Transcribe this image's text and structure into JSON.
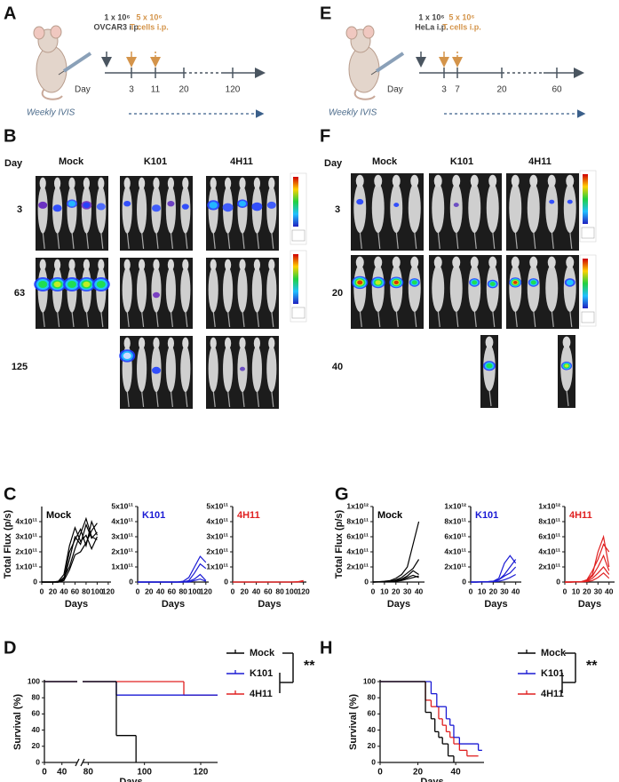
{
  "timelines": [
    {
      "panel": "A",
      "injection": [
        "1 x 10⁶",
        "OVCAR3 i.p."
      ],
      "tcells": [
        "5 x 10⁶",
        "T cells i.p."
      ],
      "day_label": "Day",
      "days": [
        3,
        11,
        20,
        120
      ],
      "imaging": "Weekly IVIS"
    },
    {
      "panel": "E",
      "injection": [
        "1 x 10⁶",
        "HeLa i.p."
      ],
      "tcells": [
        "5 x 10⁶",
        "T cells i.p."
      ],
      "day_label": "Day",
      "days": [
        3,
        7,
        20,
        60
      ],
      "imaging": "Weekly IVIS"
    }
  ],
  "imaging": [
    {
      "panel": "B",
      "day_label": "Day",
      "groups": [
        "Mock",
        "K101",
        "4H11"
      ],
      "days": [
        3,
        63,
        125
      ]
    },
    {
      "panel": "F",
      "day_label": "Day",
      "groups": [
        "Mock",
        "K101",
        "4H11"
      ],
      "days": [
        3,
        20,
        40
      ]
    }
  ],
  "chart_data": [
    {
      "type": "line",
      "panel": "C",
      "title": "Mock",
      "title_color": "#000000",
      "ylabel": "Total Flux (p/s)",
      "xlabel": "Days",
      "x": [
        0,
        10,
        20,
        30,
        40,
        50,
        60,
        70,
        80,
        90,
        100
      ],
      "xlim": [
        0,
        125
      ],
      "xticks": [
        0,
        20,
        40,
        60,
        80,
        100,
        120
      ],
      "ylim": [
        0,
        500000000000.0
      ],
      "yticks": [
        0,
        {
          "value": 100000000000.0,
          "label": "1x10¹¹"
        },
        {
          "value": 200000000000.0,
          "label": "2x10¹¹"
        },
        {
          "value": 300000000000.0,
          "label": "3x10¹¹"
        },
        {
          "value": 400000000000.0,
          "label": "4x10¹¹"
        }
      ],
      "series": [
        {
          "color": "#000000",
          "values": [
            0,
            0,
            0,
            0,
            10000000000.0,
            150000000000.0,
            300000000000.0,
            250000000000.0,
            380000000000.0,
            290000000000.0,
            330000000000.0
          ]
        },
        {
          "color": "#000000",
          "values": [
            0,
            0,
            0,
            0,
            20000000000.0,
            200000000000.0,
            280000000000.0,
            350000000000.0,
            240000000000.0,
            400000000000.0,
            310000000000.0
          ]
        },
        {
          "color": "#000000",
          "values": [
            0,
            0,
            0,
            0,
            30000000000.0,
            100000000000.0,
            220000000000.0,
            320000000000.0,
            420000000000.0,
            300000000000.0,
            280000000000.0
          ]
        },
        {
          "color": "#000000",
          "values": [
            0,
            0,
            0,
            5000000000.0,
            50000000000.0,
            240000000000.0,
            360000000000.0,
            270000000000.0,
            310000000000.0,
            220000000000.0,
            300000000000.0
          ]
        },
        {
          "color": "#000000",
          "values": [
            0,
            0,
            0,
            0,
            10000000000.0,
            80000000000.0,
            180000000000.0,
            200000000000.0,
            260000000000.0,
            340000000000.0,
            390000000000.0
          ]
        }
      ]
    },
    {
      "type": "line",
      "title": "K101",
      "title_color": "#1a1ad4",
      "xlabel": "Days",
      "x": [
        0,
        10,
        20,
        30,
        40,
        50,
        60,
        70,
        80,
        90,
        100,
        110,
        120
      ],
      "xlim": [
        0,
        125
      ],
      "xticks": [
        0,
        20,
        40,
        60,
        80,
        100,
        120
      ],
      "ylim": [
        0,
        500000000000.0
      ],
      "yticks": [
        0,
        {
          "value": 100000000000.0,
          "label": "1x10¹¹"
        },
        {
          "value": 200000000000.0,
          "label": "2x10¹¹"
        },
        {
          "value": 300000000000.0,
          "label": "3x10¹¹"
        },
        {
          "value": 400000000000.0,
          "label": "4x10¹¹"
        },
        {
          "value": 500000000000.0,
          "label": "5x10¹¹"
        }
      ],
      "series": [
        {
          "color": "#1a1ad4",
          "values": [
            0,
            0,
            0,
            0,
            0,
            0,
            0,
            0,
            5000000000.0,
            30000000000.0,
            100000000000.0,
            170000000000.0,
            130000000000.0
          ]
        },
        {
          "color": "#1a1ad4",
          "values": [
            0,
            0,
            0,
            0,
            0,
            0,
            0,
            0,
            0,
            10000000000.0,
            60000000000.0,
            120000000000.0,
            90000000000.0
          ]
        },
        {
          "color": "#1a1ad4",
          "values": [
            0,
            0,
            0,
            0,
            0,
            0,
            0,
            0,
            0,
            5000000000.0,
            20000000000.0,
            50000000000.0,
            10000000000.0
          ]
        },
        {
          "color": "#1a1ad4",
          "values": [
            0,
            0,
            0,
            0,
            0,
            0,
            0,
            0,
            0,
            0,
            10000000000.0,
            20000000000.0,
            5000000000.0
          ]
        }
      ]
    },
    {
      "type": "line",
      "title": "4H11",
      "title_color": "#e02020",
      "xlabel": "Days",
      "x": [
        0,
        10,
        20,
        30,
        40,
        50,
        60,
        70,
        80,
        90,
        100,
        110,
        120
      ],
      "xlim": [
        0,
        125
      ],
      "xticks": [
        0,
        20,
        40,
        60,
        80,
        100,
        120
      ],
      "ylim": [
        0,
        500000000000.0
      ],
      "yticks": [
        0,
        {
          "value": 100000000000.0,
          "label": "1x10¹¹"
        },
        {
          "value": 200000000000.0,
          "label": "2x10¹¹"
        },
        {
          "value": 300000000000.0,
          "label": "3x10¹¹"
        },
        {
          "value": 400000000000.0,
          "label": "4x10¹¹"
        },
        {
          "value": 500000000000.0,
          "label": "5x10¹¹"
        }
      ],
      "series": [
        {
          "color": "#e02020",
          "values": [
            0,
            0,
            0,
            0,
            0,
            0,
            0,
            0,
            0,
            0,
            0,
            0,
            5000000000.0
          ]
        },
        {
          "color": "#e02020",
          "values": [
            0,
            0,
            0,
            0,
            0,
            0,
            0,
            0,
            0,
            0,
            0,
            2000000000.0,
            10000000000.0
          ]
        }
      ]
    },
    {
      "type": "line",
      "panel": "G",
      "title": "Mock",
      "title_color": "#000000",
      "ylabel": "Total Flux (p/s)",
      "xlabel": "Days",
      "x": [
        0,
        5,
        10,
        15,
        20,
        25,
        30,
        35,
        40
      ],
      "xlim": [
        0,
        45
      ],
      "xticks": [
        0,
        10,
        20,
        30,
        40
      ],
      "ylim": [
        0,
        1000000000000.0
      ],
      "yticks": [
        0,
        {
          "value": 200000000000.0,
          "label": "2x10¹¹"
        },
        {
          "value": 400000000000.0,
          "label": "4x10¹¹"
        },
        {
          "value": 600000000000.0,
          "label": "6x10¹¹"
        },
        {
          "value": 800000000000.0,
          "label": "8x10¹¹"
        },
        {
          "value": 1000000000000.0,
          "label": "1x10¹²"
        }
      ],
      "series": [
        {
          "color": "#000000",
          "values": [
            0,
            5000000000.0,
            10000000000.0,
            20000000000.0,
            50000000000.0,
            100000000000.0,
            200000000000.0,
            500000000000.0,
            800000000000.0
          ]
        },
        {
          "color": "#000000",
          "values": [
            0,
            2000000000.0,
            5000000000.0,
            10000000000.0,
            30000000000.0,
            60000000000.0,
            120000000000.0,
            180000000000.0,
            300000000000.0
          ]
        },
        {
          "color": "#000000",
          "values": [
            0,
            2000000000.0,
            5000000000.0,
            10000000000.0,
            20000000000.0,
            40000000000.0,
            80000000000.0,
            150000000000.0,
            100000000000.0
          ]
        },
        {
          "color": "#000000",
          "values": [
            0,
            1000000000.0,
            3000000000.0,
            5000000000.0,
            10000000000.0,
            30000000000.0,
            60000000000.0,
            90000000000.0,
            60000000000.0
          ]
        },
        {
          "color": "#000000",
          "values": [
            0,
            1000000000.0,
            2000000000.0,
            5000000000.0,
            10000000000.0,
            20000000000.0,
            40000000000.0,
            60000000000.0,
            80000000000.0
          ]
        }
      ]
    },
    {
      "type": "line",
      "title": "K101",
      "title_color": "#1a1ad4",
      "xlabel": "Days",
      "x": [
        0,
        5,
        10,
        15,
        20,
        25,
        30,
        35,
        40
      ],
      "xlim": [
        0,
        45
      ],
      "xticks": [
        0,
        10,
        20,
        30,
        40
      ],
      "ylim": [
        0,
        1000000000000.0
      ],
      "yticks": [
        0,
        {
          "value": 200000000000.0,
          "label": "2x10¹¹"
        },
        {
          "value": 400000000000.0,
          "label": "4x10¹¹"
        },
        {
          "value": 600000000000.0,
          "label": "6x10¹¹"
        },
        {
          "value": 800000000000.0,
          "label": "8x10¹¹"
        },
        {
          "value": 1000000000000.0,
          "label": "1x10¹²"
        }
      ],
      "series": [
        {
          "color": "#1a1ad4",
          "values": [
            0,
            0,
            2000000000.0,
            5000000000.0,
            10000000000.0,
            50000000000.0,
            250000000000.0,
            350000000000.0,
            250000000000.0
          ]
        },
        {
          "color": "#1a1ad4",
          "values": [
            0,
            0,
            2000000000.0,
            5000000000.0,
            10000000000.0,
            30000000000.0,
            100000000000.0,
            200000000000.0,
            300000000000.0
          ]
        },
        {
          "color": "#1a1ad4",
          "values": [
            0,
            0,
            1000000000.0,
            3000000000.0,
            10000000000.0,
            30000000000.0,
            80000000000.0,
            120000000000.0,
            200000000000.0
          ]
        },
        {
          "color": "#1a1ad4",
          "values": [
            0,
            0,
            1000000000.0,
            2000000000.0,
            5000000000.0,
            10000000000.0,
            30000000000.0,
            60000000000.0,
            100000000000.0
          ]
        }
      ]
    },
    {
      "type": "line",
      "title": "4H11",
      "title_color": "#e02020",
      "xlabel": "Days",
      "x": [
        0,
        5,
        10,
        15,
        20,
        25,
        30,
        35,
        40
      ],
      "xlim": [
        0,
        45
      ],
      "xticks": [
        0,
        10,
        20,
        30,
        40
      ],
      "ylim": [
        0,
        1000000000000.0
      ],
      "yticks": [
        0,
        {
          "value": 200000000000.0,
          "label": "2x10¹¹"
        },
        {
          "value": 400000000000.0,
          "label": "4x10¹¹"
        },
        {
          "value": 600000000000.0,
          "label": "6x10¹¹"
        },
        {
          "value": 800000000000.0,
          "label": "8x10¹¹"
        },
        {
          "value": 1000000000000.0,
          "label": "1x10¹²"
        }
      ],
      "series": [
        {
          "color": "#e02020",
          "values": [
            0,
            0,
            2000000000.0,
            5000000000.0,
            20000000000.0,
            100000000000.0,
            400000000000.0,
            600000000000.0,
            200000000000.0
          ]
        },
        {
          "color": "#e02020",
          "values": [
            0,
            0,
            2000000000.0,
            5000000000.0,
            30000000000.0,
            150000000000.0,
            300000000000.0,
            500000000000.0,
            400000000000.0
          ]
        },
        {
          "color": "#e02020",
          "values": [
            0,
            0,
            1000000000.0,
            5000000000.0,
            20000000000.0,
            80000000000.0,
            200000000000.0,
            350000000000.0,
            150000000000.0
          ]
        },
        {
          "color": "#e02020",
          "values": [
            0,
            0,
            1000000000.0,
            3000000000.0,
            10000000000.0,
            50000000000.0,
            120000000000.0,
            200000000000.0,
            100000000000.0
          ]
        },
        {
          "color": "#e02020",
          "values": [
            0,
            0,
            1000000000.0,
            2000000000.0,
            5000000000.0,
            20000000000.0,
            60000000000.0,
            120000000000.0,
            50000000000.0
          ]
        }
      ]
    },
    {
      "type": "survival",
      "panel": "D",
      "ylabel": "Survival (%)",
      "xlabel": "Days",
      "xlim": [
        [
          0,
          75
        ],
        [
          78,
          126
        ]
      ],
      "xticks": [
        0,
        40,
        80,
        100,
        120
      ],
      "ylim": [
        0,
        100
      ],
      "yticks": [
        0,
        20,
        40,
        60,
        80,
        100
      ],
      "legend": "right",
      "annotation": "**",
      "series": [
        {
          "name": "Mock",
          "color": "#000000",
          "x": [
            0,
            90,
            97
          ],
          "values": [
            100,
            33.3,
            0
          ]
        },
        {
          "name": "K101",
          "color": "#1a1ad4",
          "x": [
            0,
            90,
            126
          ],
          "values": [
            100,
            83.3,
            83.3
          ]
        },
        {
          "name": "4H11",
          "color": "#e02020",
          "x": [
            0,
            114,
            126
          ],
          "values": [
            100,
            83.3,
            83.3
          ]
        }
      ]
    },
    {
      "type": "survival",
      "panel": "H",
      "ylabel": "Survival (%)",
      "xlabel": "Days",
      "xlim": [
        0,
        55
      ],
      "xticks": [
        0,
        20,
        40
      ],
      "ylim": [
        0,
        100
      ],
      "yticks": [
        0,
        20,
        40,
        60,
        80,
        100
      ],
      "legend": "right",
      "annotation": "**",
      "series": [
        {
          "name": "Mock",
          "color": "#000000",
          "x": [
            0,
            24,
            27,
            29,
            31,
            33,
            36,
            39
          ],
          "values": [
            100,
            62,
            54,
            38,
            31,
            23,
            8,
            0
          ]
        },
        {
          "name": "K101",
          "color": "#1a1ad4",
          "x": [
            0,
            27,
            30,
            35,
            37,
            39,
            42,
            52,
            54
          ],
          "values": [
            100,
            85,
            69,
            54,
            46,
            31,
            23,
            15,
            15
          ]
        },
        {
          "name": "4H11",
          "color": "#e02020",
          "x": [
            0,
            24,
            27,
            31,
            33,
            35,
            37,
            39,
            42,
            46,
            52
          ],
          "values": [
            100,
            77,
            69,
            54,
            46,
            38,
            31,
            23,
            15,
            8,
            8
          ]
        }
      ]
    }
  ]
}
